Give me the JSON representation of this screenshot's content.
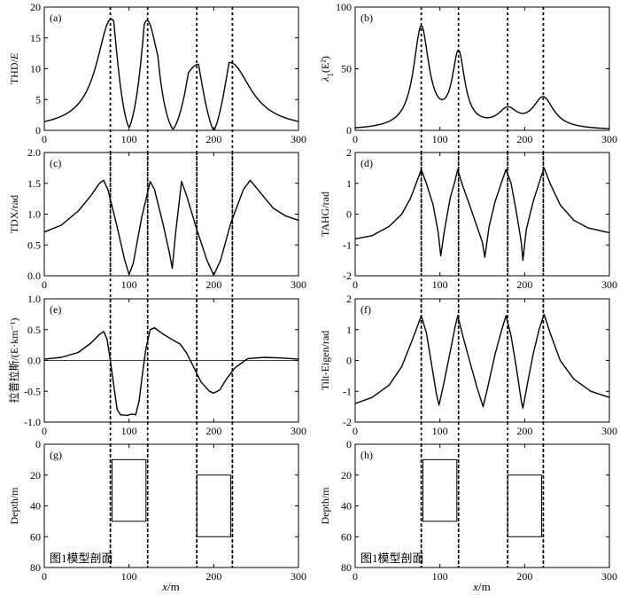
{
  "figure": {
    "common_xlabel_var": "x",
    "common_xlabel_unit": "/m"
  },
  "chart_data": [
    {
      "id": "a",
      "type": "line",
      "panel_label": "(a)",
      "ylabel": "THD/E",
      "xlim": [
        0,
        300
      ],
      "ylim": [
        0,
        20
      ],
      "x_ticks": [
        0,
        100,
        200,
        300
      ],
      "y_ticks": [
        0,
        5,
        10,
        15,
        20
      ],
      "tick_labels_y": [
        "0",
        "5",
        "10",
        "15",
        "20"
      ],
      "series": [
        {
          "peaks": [
            {
              "x": 78,
              "y": 16,
              "w": 20
            },
            {
              "x": 122,
              "y": 13.6,
              "w": 15
            },
            {
              "x": 180,
              "y": 6.5,
              "w": 22
            },
            {
              "x": 222,
              "y": 8.9,
              "w": 28
            }
          ],
          "abs_sum": true,
          "minima": [
            [
              100,
              0.5
            ],
            [
              152,
              0.2
            ],
            [
              200,
              0
            ]
          ]
        }
      ]
    },
    {
      "id": "b",
      "type": "line",
      "panel_label": "(b)",
      "ylabel_prefix": "λ",
      "ylabel_sub": "1",
      "ylabel_suffix": "(E²)",
      "xlim": [
        0,
        300
      ],
      "ylim": [
        0,
        100
      ],
      "x_ticks": [
        0,
        100,
        200,
        300
      ],
      "y_ticks": [
        0,
        50,
        100
      ],
      "tick_labels_y": [
        "0",
        "50",
        "100"
      ],
      "series": [
        {
          "peaks": [
            {
              "x": 78,
              "y": 82,
              "w": 11
            },
            {
              "x": 122,
              "y": 59,
              "w": 9
            },
            {
              "x": 180,
              "y": 14,
              "w": 14
            },
            {
              "x": 222,
              "y": 25,
              "w": 15
            }
          ]
        }
      ]
    },
    {
      "id": "c",
      "type": "line",
      "panel_label": "(c)",
      "ylabel": "TDX/rad",
      "xlim": [
        0,
        300
      ],
      "ylim": [
        0,
        2
      ],
      "x_ticks": [
        0,
        100,
        200,
        300
      ],
      "y_ticks": [
        0,
        0.5,
        1,
        1.5,
        2
      ],
      "tick_labels_y": [
        "0.0",
        "0.5",
        "1.0",
        "1.5",
        "2.0"
      ],
      "series": [
        {
          "points": [
            [
              0,
              0.71
            ],
            [
              20,
              0.82
            ],
            [
              40,
              1.05
            ],
            [
              55,
              1.3
            ],
            [
              65,
              1.5
            ],
            [
              70,
              1.55
            ],
            [
              75,
              1.4
            ],
            [
              85,
              0.85
            ],
            [
              95,
              0.25
            ],
            [
              100,
              0.02
            ],
            [
              105,
              0.2
            ],
            [
              115,
              0.95
            ],
            [
              125,
              1.53
            ],
            [
              130,
              1.4
            ],
            [
              140,
              0.85
            ],
            [
              148,
              0.35
            ],
            [
              151,
              0.12
            ],
            [
              155,
              0.7
            ],
            [
              162,
              1.53
            ],
            [
              168,
              1.3
            ],
            [
              180,
              0.75
            ],
            [
              192,
              0.25
            ],
            [
              200,
              0.01
            ],
            [
              208,
              0.25
            ],
            [
              220,
              0.85
            ],
            [
              235,
              1.4
            ],
            [
              243,
              1.55
            ],
            [
              255,
              1.35
            ],
            [
              270,
              1.1
            ],
            [
              285,
              0.97
            ],
            [
              300,
              0.9
            ]
          ]
        }
      ]
    },
    {
      "id": "d",
      "type": "line",
      "panel_label": "(d)",
      "ylabel": "TAHG/rad",
      "xlim": [
        0,
        300
      ],
      "ylim": [
        -2,
        2
      ],
      "x_ticks": [
        0,
        100,
        200,
        300
      ],
      "y_ticks": [
        -2,
        -1,
        0,
        1,
        2
      ],
      "tick_labels_y": [
        "-2",
        "-1",
        "0",
        "1",
        "2"
      ],
      "series": [
        {
          "points": [
            [
              0,
              -0.8
            ],
            [
              20,
              -0.7
            ],
            [
              40,
              -0.4
            ],
            [
              55,
              0
            ],
            [
              65,
              0.5
            ],
            [
              72,
              1.0
            ],
            [
              78,
              1.45
            ],
            [
              84,
              1.0
            ],
            [
              92,
              0.3
            ],
            [
              98,
              -0.6
            ],
            [
              101,
              -1.35
            ],
            [
              105,
              -0.6
            ],
            [
              112,
              0.5
            ],
            [
              118,
              1.1
            ],
            [
              121,
              1.45
            ],
            [
              126,
              1.0
            ],
            [
              135,
              0.3
            ],
            [
              145,
              -0.5
            ],
            [
              150,
              -0.9
            ],
            [
              153,
              -1.4
            ],
            [
              158,
              -0.4
            ],
            [
              165,
              0.4
            ],
            [
              173,
              1.05
            ],
            [
              178,
              1.45
            ],
            [
              184,
              1.0
            ],
            [
              190,
              0.1
            ],
            [
              196,
              -0.9
            ],
            [
              198,
              -1.5
            ],
            [
              202,
              -0.5
            ],
            [
              210,
              0.4
            ],
            [
              218,
              1.1
            ],
            [
              223,
              1.5
            ],
            [
              230,
              1.0
            ],
            [
              242,
              0.3
            ],
            [
              258,
              -0.2
            ],
            [
              275,
              -0.45
            ],
            [
              300,
              -0.6
            ]
          ]
        }
      ]
    },
    {
      "id": "e",
      "type": "line",
      "panel_label": "(e)",
      "ylabel": "拉普拉斯/(E·km⁻¹)",
      "xlim": [
        0,
        300
      ],
      "ylim": [
        -1,
        1
      ],
      "x_ticks": [
        0,
        100,
        200,
        300
      ],
      "y_ticks": [
        -1,
        -0.5,
        0,
        0.5,
        1
      ],
      "tick_labels_y": [
        "-1.0",
        "-0.5",
        "0.0",
        "0.5",
        "1.0"
      ],
      "zero_line": true,
      "series": [
        {
          "points": [
            [
              0,
              0.02
            ],
            [
              20,
              0.05
            ],
            [
              40,
              0.13
            ],
            [
              55,
              0.28
            ],
            [
              65,
              0.42
            ],
            [
              70,
              0.47
            ],
            [
              74,
              0.35
            ],
            [
              78,
              0.0
            ],
            [
              82,
              -0.4
            ],
            [
              86,
              -0.8
            ],
            [
              90,
              -0.88
            ],
            [
              98,
              -0.89
            ],
            [
              103,
              -0.87
            ],
            [
              108,
              -0.88
            ],
            [
              112,
              -0.65
            ],
            [
              116,
              -0.2
            ],
            [
              120,
              0.2
            ],
            [
              125,
              0.5
            ],
            [
              130,
              0.53
            ],
            [
              140,
              0.43
            ],
            [
              152,
              0.33
            ],
            [
              160,
              0.27
            ],
            [
              168,
              0.12
            ],
            [
              176,
              -0.1
            ],
            [
              185,
              -0.35
            ],
            [
              195,
              -0.5
            ],
            [
              200,
              -0.53
            ],
            [
              207,
              -0.48
            ],
            [
              215,
              -0.3
            ],
            [
              225,
              -0.12
            ],
            [
              240,
              0.03
            ],
            [
              260,
              0.05
            ],
            [
              280,
              0.04
            ],
            [
              300,
              0.02
            ]
          ]
        }
      ]
    },
    {
      "id": "f",
      "type": "line",
      "panel_label": "(f)",
      "ylabel": "Tilt-Eigen/rad",
      "xlim": [
        0,
        300
      ],
      "ylim": [
        -2,
        2
      ],
      "x_ticks": [
        0,
        100,
        200,
        300
      ],
      "y_ticks": [
        -2,
        -1,
        0,
        1,
        2
      ],
      "tick_labels_y": [
        "-2",
        "-1",
        "0",
        "1",
        "2"
      ],
      "series": [
        {
          "points": [
            [
              0,
              -1.4
            ],
            [
              20,
              -1.2
            ],
            [
              40,
              -0.8
            ],
            [
              55,
              -0.2
            ],
            [
              65,
              0.5
            ],
            [
              72,
              1.0
            ],
            [
              78,
              1.45
            ],
            [
              84,
              0.9
            ],
            [
              90,
              -0.1
            ],
            [
              96,
              -1.1
            ],
            [
              99,
              -1.45
            ],
            [
              105,
              -0.7
            ],
            [
              113,
              0.4
            ],
            [
              118,
              1.1
            ],
            [
              121,
              1.45
            ],
            [
              127,
              0.8
            ],
            [
              135,
              0.0
            ],
            [
              144,
              -0.9
            ],
            [
              151,
              -1.5
            ],
            [
              157,
              -0.8
            ],
            [
              165,
              0.2
            ],
            [
              173,
              1.0
            ],
            [
              178,
              1.45
            ],
            [
              184,
              0.8
            ],
            [
              190,
              -0.2
            ],
            [
              196,
              -1.3
            ],
            [
              198,
              -1.55
            ],
            [
              203,
              -0.8
            ],
            [
              210,
              0.2
            ],
            [
              217,
              1.0
            ],
            [
              223,
              1.5
            ],
            [
              230,
              0.9
            ],
            [
              242,
              0.0
            ],
            [
              258,
              -0.6
            ],
            [
              278,
              -1.0
            ],
            [
              300,
              -1.2
            ]
          ]
        }
      ]
    },
    {
      "id": "g",
      "type": "diagram",
      "panel_label": "(g)",
      "ylabel": "Depth/m",
      "xlim": [
        0,
        300
      ],
      "ylim": [
        80,
        0
      ],
      "x_ticks": [
        0,
        100,
        200,
        300
      ],
      "y_ticks": [
        0,
        20,
        40,
        60,
        80
      ],
      "tick_labels_y": [
        "0",
        "20",
        "40",
        "60",
        "80"
      ],
      "caption": "图1模型剖面",
      "bodies": [
        {
          "x0": 80,
          "x1": 120,
          "top": 10,
          "bottom": 50
        },
        {
          "x0": 180,
          "x1": 220,
          "top": 20,
          "bottom": 60
        }
      ]
    },
    {
      "id": "h",
      "type": "diagram",
      "panel_label": "(h)",
      "ylabel": "Depth/m",
      "xlim": [
        0,
        300
      ],
      "ylim": [
        80,
        0
      ],
      "x_ticks": [
        0,
        100,
        200,
        300
      ],
      "y_ticks": [
        0,
        20,
        40,
        60,
        80
      ],
      "tick_labels_y": [
        "0",
        "20",
        "40",
        "60",
        "80"
      ],
      "caption": "图1模型剖面",
      "bodies": [
        {
          "x0": 80,
          "x1": 120,
          "top": 10,
          "bottom": 50
        },
        {
          "x0": 180,
          "x1": 220,
          "top": 20,
          "bottom": 60
        }
      ]
    }
  ],
  "reference_lines_x": [
    78,
    122,
    180,
    222
  ],
  "x_tick_labels": [
    "0",
    "100",
    "200",
    "300"
  ]
}
